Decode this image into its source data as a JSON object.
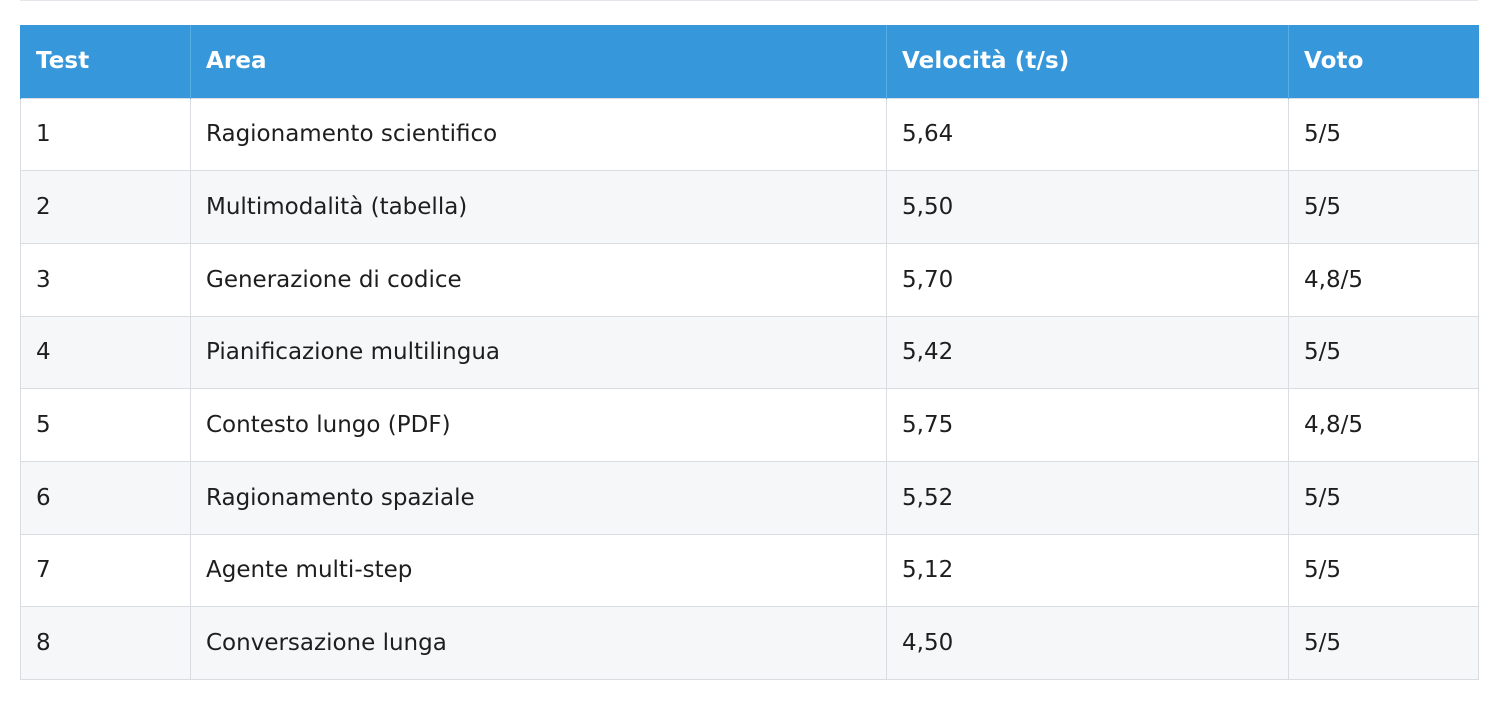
{
  "table": {
    "headers": [
      "Test",
      "Area",
      "Velocità (t/s)",
      "Voto"
    ],
    "rows": [
      [
        "1",
        "Ragionamento scientifico",
        "5,64",
        "5/5"
      ],
      [
        "2",
        "Multimodalità (tabella)",
        "5,50",
        "5/5"
      ],
      [
        "3",
        "Generazione di codice",
        "5,70",
        "4,8/5"
      ],
      [
        "4",
        "Pianificazione multilingua",
        "5,42",
        "5/5"
      ],
      [
        "5",
        "Contesto lungo (PDF)",
        "5,75",
        "4,8/5"
      ],
      [
        "6",
        "Ragionamento spaziale",
        "5,52",
        "5/5"
      ],
      [
        "7",
        "Agente multi-step",
        "5,12",
        "5/5"
      ],
      [
        "8",
        "Conversazione lunga",
        "4,50",
        "5/5"
      ]
    ]
  },
  "colors": {
    "header_bg": "#3797db",
    "header_text": "#ffffff",
    "row_alt_bg": "#f6f7f9",
    "border": "#d9dde2"
  }
}
